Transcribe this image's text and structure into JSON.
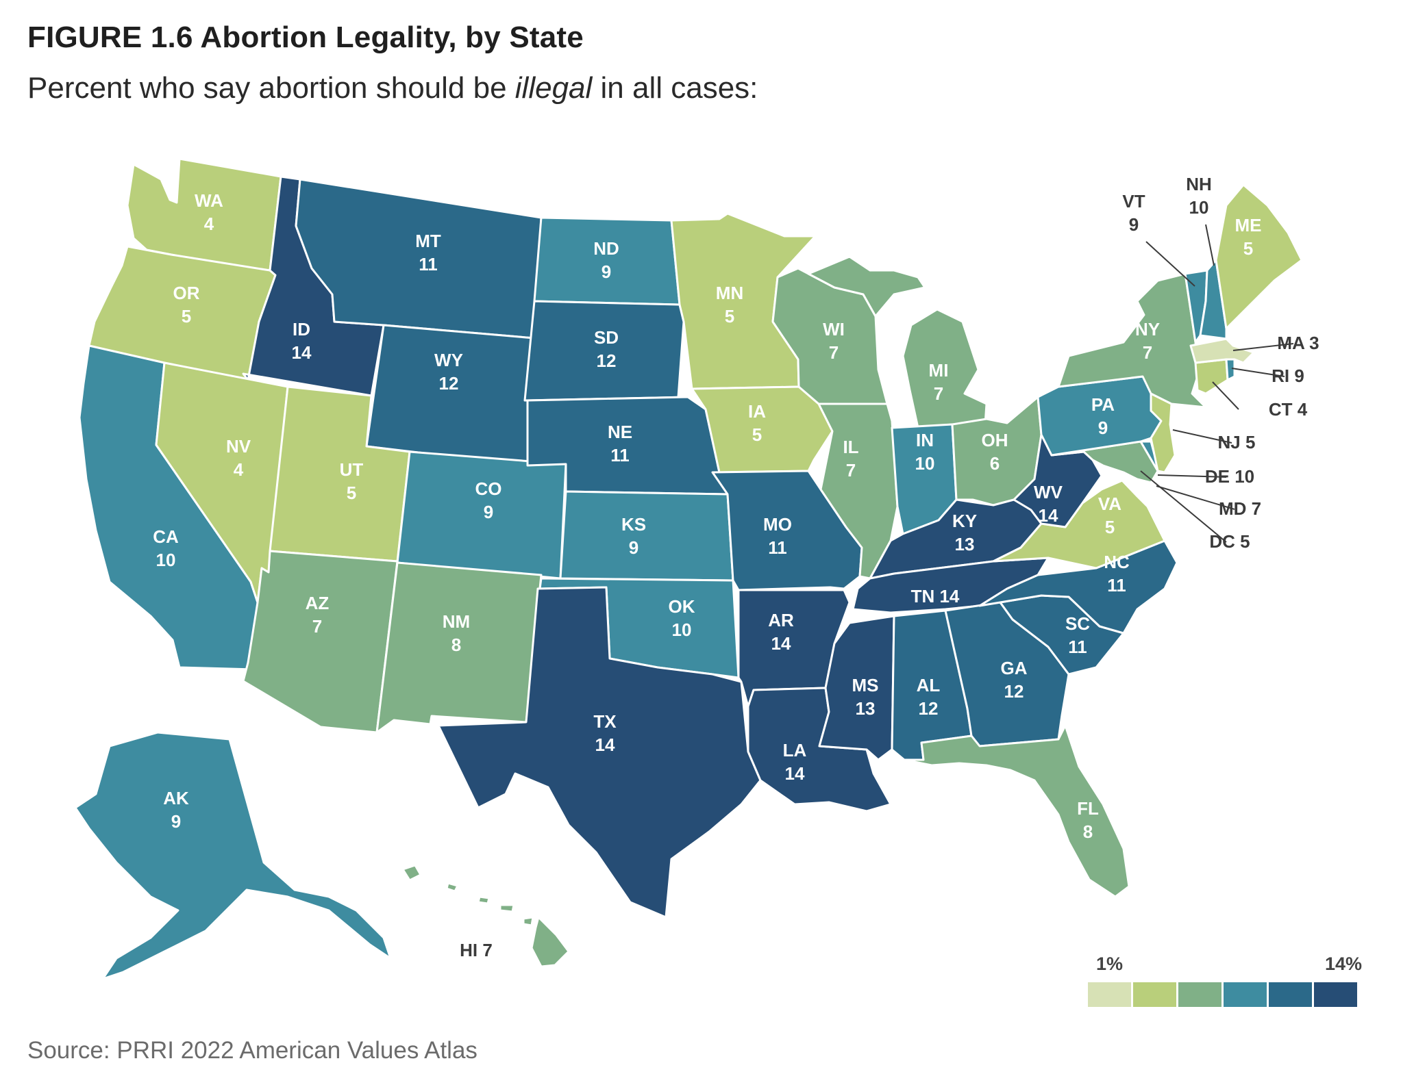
{
  "header": {
    "title": "FIGURE 1.6  Abortion Legality, by State",
    "subtitle_pre": "Percent who say abortion should be ",
    "subtitle_em": "illegal",
    "subtitle_post": " in all cases:"
  },
  "source": "Source: PRRI 2022 American Values Atlas",
  "legend": {
    "min_label": "1%",
    "max_label": "14%",
    "colors": [
      "#d7e1b5",
      "#b9cf7b",
      "#80b087",
      "#3e8ca0",
      "#2b6989",
      "#264d75"
    ]
  },
  "chart_data": {
    "type": "choropleth",
    "measure": "Percent who say abortion should be illegal in all cases",
    "unit": "%",
    "states": [
      {
        "abbr": "WA",
        "value": 4
      },
      {
        "abbr": "OR",
        "value": 5
      },
      {
        "abbr": "CA",
        "value": 10
      },
      {
        "abbr": "ID",
        "value": 14
      },
      {
        "abbr": "NV",
        "value": 4
      },
      {
        "abbr": "MT",
        "value": 11
      },
      {
        "abbr": "WY",
        "value": 12
      },
      {
        "abbr": "UT",
        "value": 5
      },
      {
        "abbr": "AZ",
        "value": 7
      },
      {
        "abbr": "CO",
        "value": 9
      },
      {
        "abbr": "NM",
        "value": 8
      },
      {
        "abbr": "ND",
        "value": 9
      },
      {
        "abbr": "SD",
        "value": 12
      },
      {
        "abbr": "NE",
        "value": 11
      },
      {
        "abbr": "KS",
        "value": 9
      },
      {
        "abbr": "OK",
        "value": 10
      },
      {
        "abbr": "TX",
        "value": 14
      },
      {
        "abbr": "MN",
        "value": 5
      },
      {
        "abbr": "IA",
        "value": 5
      },
      {
        "abbr": "MO",
        "value": 11
      },
      {
        "abbr": "AR",
        "value": 14
      },
      {
        "abbr": "LA",
        "value": 14
      },
      {
        "abbr": "WI",
        "value": 7
      },
      {
        "abbr": "IL",
        "value": 7
      },
      {
        "abbr": "MI",
        "value": 7
      },
      {
        "abbr": "IN",
        "value": 10
      },
      {
        "abbr": "OH",
        "value": 6
      },
      {
        "abbr": "KY",
        "value": 13
      },
      {
        "abbr": "TN",
        "value": 14
      },
      {
        "abbr": "MS",
        "value": 13
      },
      {
        "abbr": "AL",
        "value": 12
      },
      {
        "abbr": "GA",
        "value": 12
      },
      {
        "abbr": "FL",
        "value": 8
      },
      {
        "abbr": "SC",
        "value": 11
      },
      {
        "abbr": "NC",
        "value": 11
      },
      {
        "abbr": "VA",
        "value": 5
      },
      {
        "abbr": "WV",
        "value": 14
      },
      {
        "abbr": "PA",
        "value": 9
      },
      {
        "abbr": "NY",
        "value": 7
      },
      {
        "abbr": "VT",
        "value": 9
      },
      {
        "abbr": "NH",
        "value": 10
      },
      {
        "abbr": "ME",
        "value": 5
      },
      {
        "abbr": "MA",
        "value": 3
      },
      {
        "abbr": "RI",
        "value": 9
      },
      {
        "abbr": "CT",
        "value": 4
      },
      {
        "abbr": "NJ",
        "value": 5
      },
      {
        "abbr": "DE",
        "value": 10
      },
      {
        "abbr": "MD",
        "value": 7
      },
      {
        "abbr": "DC",
        "value": 5
      },
      {
        "abbr": "AK",
        "value": 9
      },
      {
        "abbr": "HI",
        "value": 7
      }
    ]
  }
}
